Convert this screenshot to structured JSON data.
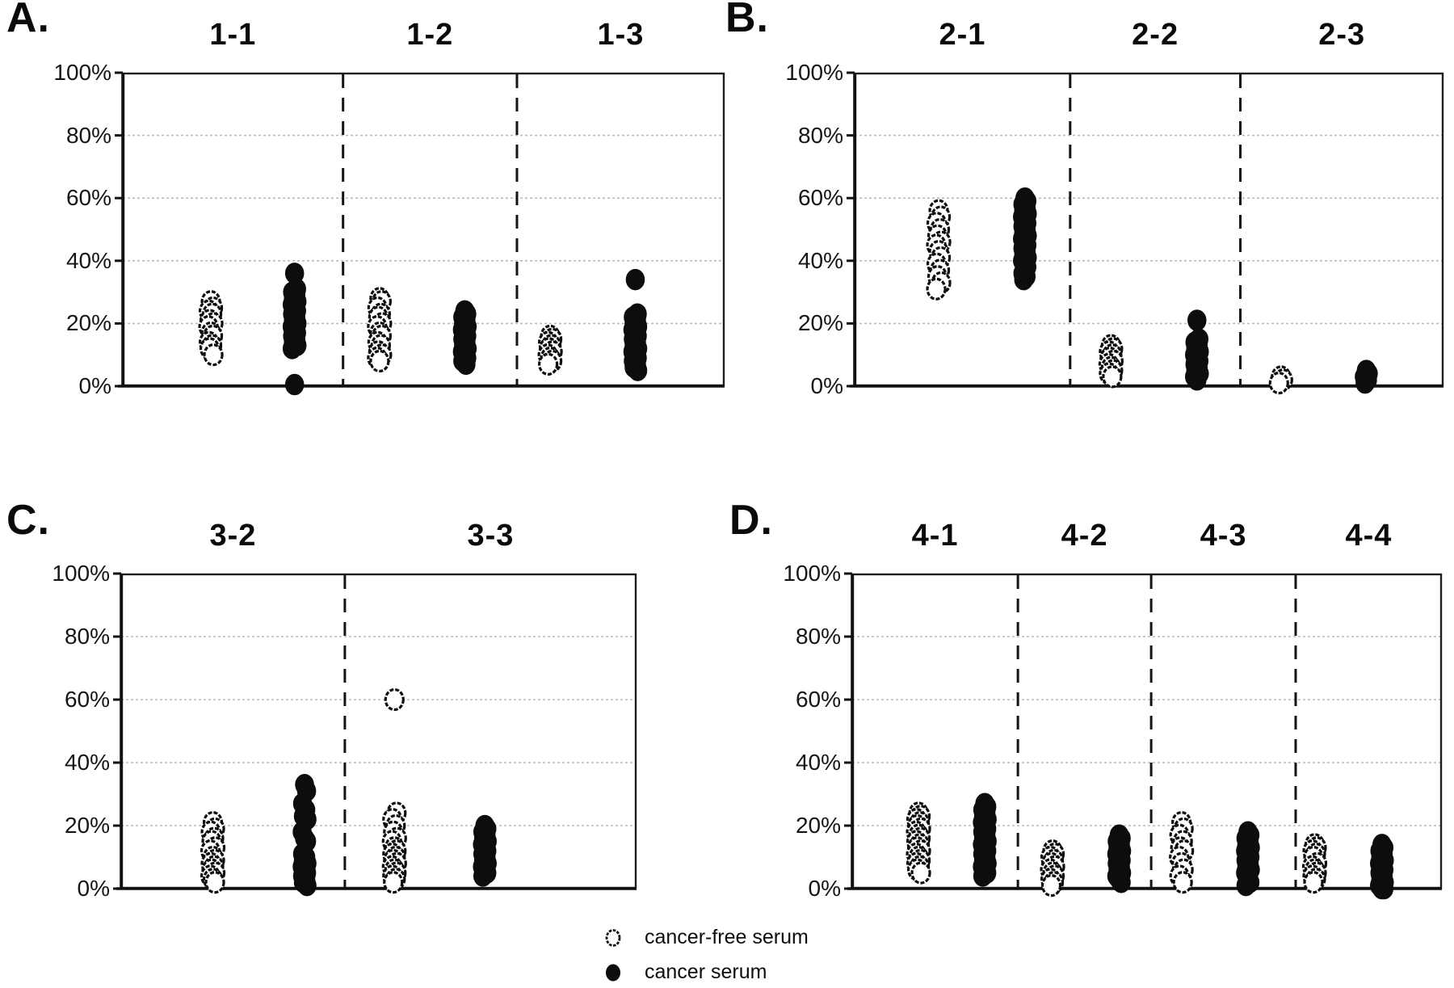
{
  "legend": {
    "items": [
      {
        "marker": "open-circle",
        "label": "cancer-free serum"
      },
      {
        "marker": "filled-circle",
        "label": "cancer serum"
      }
    ]
  },
  "chart_data": [
    {
      "type": "scatter",
      "panel_label": "A.",
      "ylim": [
        0,
        100
      ],
      "y_ticks": [
        "100%",
        "80%",
        "60%",
        "40%",
        "20%",
        "0%"
      ],
      "grid": true,
      "groups": [
        {
          "name": "1-1",
          "cancer_free_serum": [
            27,
            25,
            24,
            23,
            21,
            20,
            19,
            17,
            16,
            14,
            13,
            12,
            10
          ],
          "cancer_serum": [
            36,
            31,
            30,
            29,
            28,
            27,
            26,
            25,
            24,
            23,
            22,
            21,
            20,
            19,
            18,
            17,
            16,
            15,
            14,
            13,
            12,
            0.5
          ]
        },
        {
          "name": "1-2",
          "cancer_free_serum": [
            28,
            27,
            25,
            23,
            22,
            20,
            19,
            17,
            16,
            14,
            13,
            11,
            10,
            9,
            8
          ],
          "cancer_serum": [
            24,
            23,
            22,
            21,
            20,
            19,
            18,
            17,
            16,
            15,
            14,
            13,
            12,
            11,
            10,
            9,
            8,
            7
          ]
        },
        {
          "name": "1-3",
          "cancer_free_serum": [
            16,
            15,
            14,
            13,
            12,
            11,
            10,
            9,
            8,
            7
          ],
          "cancer_serum": [
            34,
            23,
            22,
            21,
            20,
            19,
            18,
            17,
            16,
            15,
            14,
            13,
            12,
            11,
            10,
            9,
            8,
            7,
            6,
            5
          ]
        }
      ]
    },
    {
      "type": "scatter",
      "panel_label": "B.",
      "ylim": [
        0,
        100
      ],
      "y_ticks": [
        "100%",
        "80%",
        "60%",
        "40%",
        "20%",
        "0%"
      ],
      "grid": true,
      "groups": [
        {
          "name": "2-1",
          "cancer_free_serum": [
            56,
            54,
            52,
            50,
            48,
            46,
            45,
            43,
            41,
            39,
            37,
            35,
            33,
            31
          ],
          "cancer_serum": [
            60,
            59,
            58,
            57,
            56,
            55,
            54,
            53,
            52,
            51,
            50,
            49,
            48,
            47,
            46,
            45,
            44,
            43,
            42,
            41,
            40,
            39,
            38,
            36,
            35,
            34
          ]
        },
        {
          "name": "2-2",
          "cancer_free_serum": [
            13,
            12,
            11,
            10,
            9,
            8,
            7,
            6,
            5,
            4,
            3
          ],
          "cancer_serum": [
            21,
            15,
            14,
            13,
            12,
            11,
            10,
            9,
            8,
            7,
            6,
            5,
            4,
            3,
            2
          ]
        },
        {
          "name": "2-3",
          "cancer_free_serum": [
            3,
            2,
            1
          ],
          "cancer_serum": [
            5,
            4,
            3,
            2,
            1
          ]
        }
      ]
    },
    {
      "type": "scatter",
      "panel_label": "C.",
      "ylim": [
        0,
        100
      ],
      "y_ticks": [
        "100%",
        "80%",
        "60%",
        "40%",
        "20%",
        "0%"
      ],
      "grid": true,
      "groups": [
        {
          "name": "3-2",
          "cancer_free_serum": [
            21,
            19,
            18,
            16,
            15,
            13,
            12,
            10,
            9,
            8,
            7,
            6,
            5,
            4,
            3,
            2
          ],
          "cancer_serum": [
            33,
            31,
            27,
            25,
            23,
            22,
            18,
            16,
            15,
            11,
            10,
            9,
            8,
            7,
            6,
            5,
            4,
            3,
            2,
            1
          ]
        },
        {
          "name": "3-3",
          "cancer_free_serum": [
            60,
            24,
            22,
            20,
            18,
            16,
            15,
            13,
            12,
            11,
            10,
            9,
            8,
            7,
            6,
            5,
            4,
            3,
            2
          ],
          "cancer_serum": [
            20,
            19,
            18,
            17,
            16,
            15,
            14,
            13,
            12,
            11,
            10,
            9,
            8,
            7,
            6,
            5,
            4
          ]
        }
      ]
    },
    {
      "type": "scatter",
      "panel_label": "D.",
      "ylim": [
        0,
        100
      ],
      "y_ticks": [
        "100%",
        "80%",
        "60%",
        "40%",
        "20%",
        "0%"
      ],
      "grid": true,
      "groups": [
        {
          "name": "4-1",
          "cancer_free_serum": [
            24,
            23,
            22,
            21,
            20,
            19,
            18,
            17,
            16,
            15,
            14,
            13,
            12,
            11,
            10,
            9,
            8,
            7,
            6,
            5
          ],
          "cancer_serum": [
            27,
            26,
            25,
            24,
            23,
            22,
            21,
            20,
            19,
            18,
            17,
            16,
            15,
            14,
            13,
            12,
            11,
            10,
            9,
            8,
            7,
            6,
            5,
            4
          ]
        },
        {
          "name": "4-2",
          "cancer_free_serum": [
            12,
            11,
            10,
            9,
            8,
            7,
            6,
            5,
            4,
            3,
            2,
            1
          ],
          "cancer_serum": [
            17,
            16,
            15,
            14,
            13,
            12,
            11,
            10,
            9,
            8,
            7,
            6,
            5,
            4,
            3,
            2
          ]
        },
        {
          "name": "4-3",
          "cancer_free_serum": [
            21,
            19,
            17,
            15,
            13,
            12,
            10,
            8,
            6,
            4,
            2
          ],
          "cancer_serum": [
            18,
            17,
            16,
            15,
            14,
            13,
            12,
            11,
            10,
            9,
            8,
            7,
            6,
            5,
            4,
            2,
            1
          ]
        },
        {
          "name": "4-4",
          "cancer_free_serum": [
            14,
            13,
            12,
            11,
            10,
            8,
            7,
            6,
            5,
            4,
            3,
            2
          ],
          "cancer_serum": [
            14,
            13,
            12,
            11,
            10,
            9,
            8,
            7,
            6,
            5,
            4,
            3,
            2,
            1,
            0,
            0
          ]
        }
      ]
    }
  ]
}
